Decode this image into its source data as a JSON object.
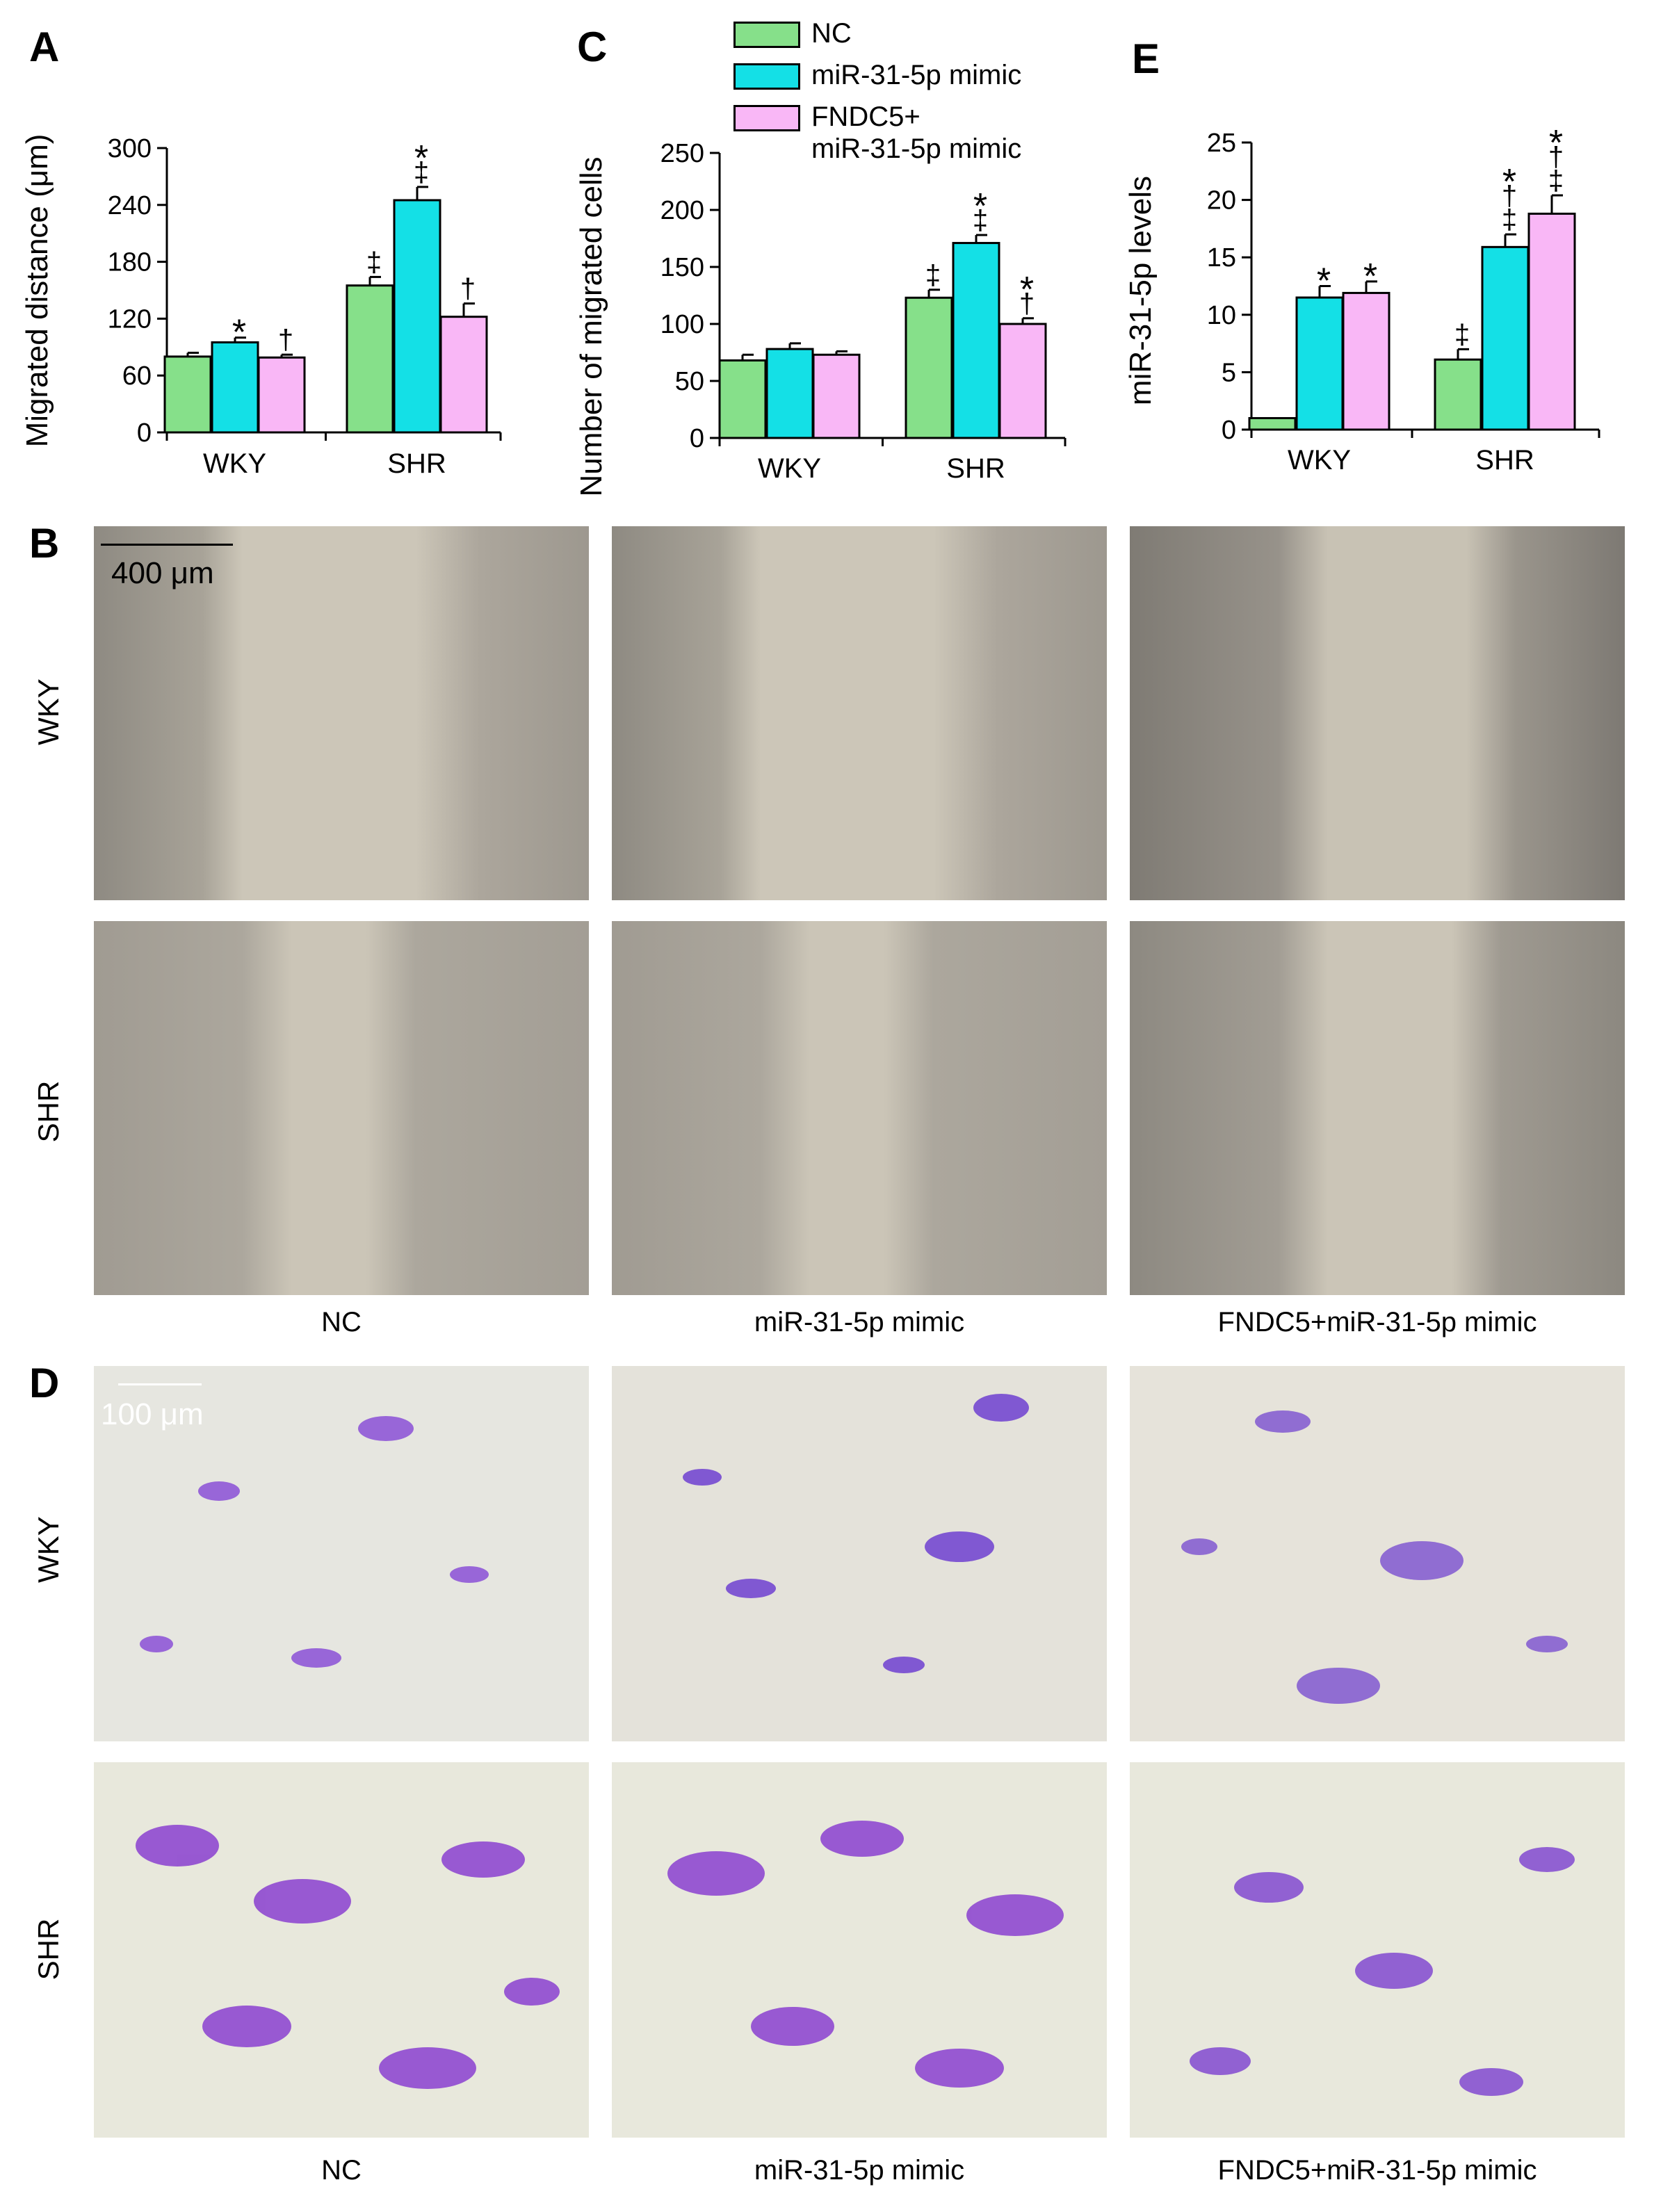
{
  "panels": {
    "A": "A",
    "B": "B",
    "C": "C",
    "D": "D",
    "E": "E"
  },
  "legend": {
    "items": [
      {
        "label_lines": [
          "NC"
        ],
        "color": "#86e08a"
      },
      {
        "label_lines": [
          "miR-31-5p mimic"
        ],
        "color": "#14e0e6"
      },
      {
        "label_lines": [
          "FNDC5+",
          "miR-31-5p mimic"
        ],
        "color": "#f9b7f6"
      }
    ]
  },
  "chart_data": [
    {
      "panel": "A",
      "type": "bar",
      "ylabel": "Migrated distance (μm)",
      "ylim": [
        0,
        300
      ],
      "yticks": [
        0,
        60,
        120,
        180,
        240,
        300
      ],
      "categories": [
        "WKY",
        "SHR"
      ],
      "series": [
        {
          "name": "NC",
          "color": "#86e08a",
          "values": [
            80,
            155
          ],
          "errors": [
            4,
            9
          ],
          "annotations": [
            "",
            "‡"
          ]
        },
        {
          "name": "miR-31-5p mimic",
          "color": "#14e0e6",
          "values": [
            95,
            245
          ],
          "errors": [
            5,
            14
          ],
          "annotations": [
            "*",
            "*\n‡"
          ]
        },
        {
          "name": "FNDC5+miR-31-5p mimic",
          "color": "#f9b7f6",
          "values": [
            79,
            122
          ],
          "errors": [
            3,
            14
          ],
          "annotations": [
            "†",
            "†"
          ]
        }
      ]
    },
    {
      "panel": "C",
      "type": "bar",
      "ylabel": "Number of migrated cells",
      "ylim": [
        0,
        250
      ],
      "yticks": [
        0,
        50,
        100,
        150,
        200,
        250
      ],
      "categories": [
        "WKY",
        "SHR"
      ],
      "series": [
        {
          "name": "NC",
          "color": "#86e08a",
          "values": [
            68,
            123
          ],
          "errors": [
            5,
            7
          ],
          "annotations": [
            "",
            "‡"
          ]
        },
        {
          "name": "miR-31-5p mimic",
          "color": "#14e0e6",
          "values": [
            78,
            171
          ],
          "errors": [
            5,
            7
          ],
          "annotations": [
            "",
            "*\n‡"
          ]
        },
        {
          "name": "FNDC5+miR-31-5p mimic",
          "color": "#f9b7f6",
          "values": [
            73,
            100
          ],
          "errors": [
            3,
            5
          ],
          "annotations": [
            "",
            "*\n†"
          ]
        }
      ]
    },
    {
      "panel": "E",
      "type": "bar",
      "ylabel": "miR-31-5p levels",
      "ylim": [
        0,
        25
      ],
      "yticks": [
        0,
        5,
        10,
        15,
        20,
        25
      ],
      "categories": [
        "WKY",
        "SHR"
      ],
      "series": [
        {
          "name": "NC",
          "color": "#86e08a",
          "values": [
            1.0,
            6.1
          ],
          "errors": [
            0,
            0.9
          ],
          "annotations": [
            "",
            "‡"
          ]
        },
        {
          "name": "miR-31-5p mimic",
          "color": "#14e0e6",
          "values": [
            11.5,
            15.9
          ],
          "errors": [
            1.0,
            1.1
          ],
          "annotations": [
            "*",
            "*\n†\n‡"
          ]
        },
        {
          "name": "FNDC5+miR-31-5p mimic",
          "color": "#f9b7f6",
          "values": [
            11.9,
            18.8
          ],
          "errors": [
            1.0,
            1.6
          ],
          "annotations": [
            "*",
            "*\n†\n‡"
          ]
        }
      ]
    }
  ],
  "panelB": {
    "scalebar": "400 μm",
    "rows": [
      "WKY",
      "SHR"
    ],
    "cols": [
      "NC",
      "miR-31-5p mimic",
      "FNDC5+miR-31-5p mimic"
    ]
  },
  "panelD": {
    "scalebar": "100 μm",
    "rows": [
      "WKY",
      "SHR"
    ],
    "cols": [
      "NC",
      "miR-31-5p mimic",
      "FNDC5+miR-31-5p mimic"
    ]
  }
}
